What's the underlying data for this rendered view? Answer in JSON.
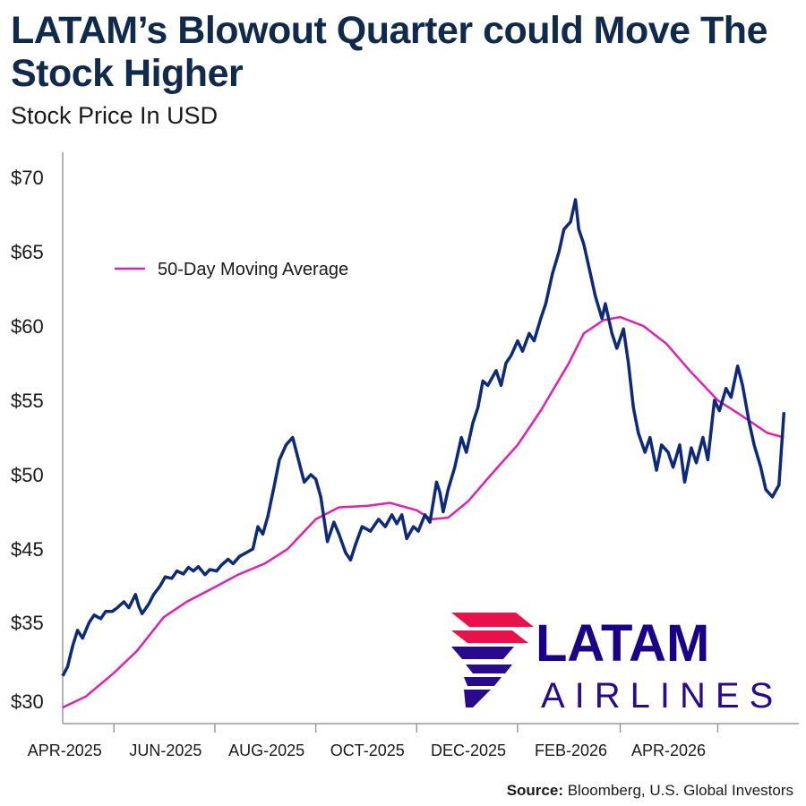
{
  "title": "LATAM’s Blowout Quarter could Move The Stock Higher",
  "subtitle": "Stock Price In USD",
  "source_label": "Source:",
  "source_text": " Bloomberg, U.S. Global Investors",
  "logo": {
    "name": "LATAM",
    "sub": "AIRLINES",
    "colors": {
      "red": "#e8114b",
      "purple": "#2a0a8c",
      "navy": "#1b0088"
    }
  },
  "colors": {
    "price": "#0d2a7a",
    "ma": "#e020b0",
    "axis": "#9a9a9a",
    "title": "#0f2a4a"
  },
  "chart_data": {
    "type": "line",
    "title": "LATAM’s Blowout Quarter could Move The Stock Higher",
    "subtitle": "Stock Price In USD",
    "ylabel": "",
    "xlabel": "",
    "ylim": [
      30,
      71
    ],
    "y_ticks": [
      {
        "value": 30,
        "label": "$30"
      },
      {
        "value": 35,
        "label": "$35"
      },
      {
        "value": 45,
        "label": "$45"
      },
      {
        "value": 50,
        "label": "$50"
      },
      {
        "value": 55,
        "label": "$55"
      },
      {
        "value": 60,
        "label": "$60"
      },
      {
        "value": 65,
        "label": "$65"
      },
      {
        "value": 70,
        "label": "$70"
      }
    ],
    "x_range": [
      "2025-03-01",
      "2026-05-20"
    ],
    "x_ticks": [
      {
        "date": "2025-04-01",
        "label": "APR-2025"
      },
      {
        "date": "2025-06-01",
        "label": "JUN-2025"
      },
      {
        "date": "2025-08-01",
        "label": "AUG-2025"
      },
      {
        "date": "2025-10-01",
        "label": "OCT-2025"
      },
      {
        "date": "2025-12-01",
        "label": "DEC-2025"
      },
      {
        "date": "2026-02-01",
        "label": "FEB-2026"
      },
      {
        "date": "2026-04-01",
        "label": "APR-2026"
      }
    ],
    "legend": {
      "position": "top-left",
      "entries": [
        "50-Day Moving Average"
      ]
    },
    "grid": false,
    "series": [
      {
        "key": "price",
        "points": [
          [
            "2025-03-01",
            31.6
          ],
          [
            "2025-03-04",
            32.2
          ],
          [
            "2025-03-07",
            33.5
          ],
          [
            "2025-03-10",
            34.5
          ],
          [
            "2025-03-13",
            34.0
          ],
          [
            "2025-03-17",
            35.0
          ],
          [
            "2025-03-20",
            36.0
          ],
          [
            "2025-03-24",
            35.5
          ],
          [
            "2025-03-27",
            36.5
          ],
          [
            "2025-03-31",
            36.5
          ],
          [
            "2025-04-03",
            37.0
          ],
          [
            "2025-04-07",
            37.8
          ],
          [
            "2025-04-10",
            37.0
          ],
          [
            "2025-04-14",
            38.8
          ],
          [
            "2025-04-16",
            37.2
          ],
          [
            "2025-04-18",
            36.2
          ],
          [
            "2025-04-22",
            37.5
          ],
          [
            "2025-04-25",
            38.8
          ],
          [
            "2025-04-29",
            40.0
          ],
          [
            "2025-05-02",
            41.2
          ],
          [
            "2025-05-06",
            41.0
          ],
          [
            "2025-05-09",
            42.0
          ],
          [
            "2025-05-13",
            41.6
          ],
          [
            "2025-05-16",
            42.5
          ],
          [
            "2025-05-19",
            42.0
          ],
          [
            "2025-05-22",
            42.6
          ],
          [
            "2025-05-26",
            41.5
          ],
          [
            "2025-05-29",
            42.2
          ],
          [
            "2025-06-02",
            42.0
          ],
          [
            "2025-06-05",
            42.8
          ],
          [
            "2025-06-09",
            43.6
          ],
          [
            "2025-06-12",
            43.0
          ],
          [
            "2025-06-16",
            44.0
          ],
          [
            "2025-06-20",
            44.5
          ],
          [
            "2025-06-24",
            45.0
          ],
          [
            "2025-06-27",
            46.5
          ],
          [
            "2025-06-30",
            46.0
          ],
          [
            "2025-07-03",
            47.2
          ],
          [
            "2025-07-07",
            49.3
          ],
          [
            "2025-07-10",
            51.0
          ],
          [
            "2025-07-14",
            52.0
          ],
          [
            "2025-07-18",
            52.5
          ],
          [
            "2025-07-22",
            50.8
          ],
          [
            "2025-07-25",
            49.5
          ],
          [
            "2025-07-29",
            50.0
          ],
          [
            "2025-08-01",
            49.7
          ],
          [
            "2025-08-04",
            48.5
          ],
          [
            "2025-08-06",
            47.0
          ],
          [
            "2025-08-08",
            45.5
          ],
          [
            "2025-08-12",
            46.8
          ],
          [
            "2025-08-15",
            46.0
          ],
          [
            "2025-08-19",
            44.5
          ],
          [
            "2025-08-22",
            43.5
          ],
          [
            "2025-08-25",
            45.3
          ],
          [
            "2025-08-29",
            46.5
          ],
          [
            "2025-09-03",
            46.2
          ],
          [
            "2025-09-08",
            47.0
          ],
          [
            "2025-09-12",
            46.5
          ],
          [
            "2025-09-16",
            47.3
          ],
          [
            "2025-09-19",
            46.7
          ],
          [
            "2025-09-22",
            47.3
          ],
          [
            "2025-09-25",
            45.7
          ],
          [
            "2025-09-29",
            46.5
          ],
          [
            "2025-10-02",
            46.2
          ],
          [
            "2025-10-06",
            47.3
          ],
          [
            "2025-10-09",
            46.8
          ],
          [
            "2025-10-13",
            49.5
          ],
          [
            "2025-10-15",
            48.8
          ],
          [
            "2025-10-17",
            47.5
          ],
          [
            "2025-10-20",
            49.0
          ],
          [
            "2025-10-24",
            50.5
          ],
          [
            "2025-10-28",
            52.5
          ],
          [
            "2025-10-31",
            51.5
          ],
          [
            "2025-11-04",
            53.5
          ],
          [
            "2025-11-07",
            54.5
          ],
          [
            "2025-11-10",
            56.3
          ],
          [
            "2025-11-13",
            56.0
          ],
          [
            "2025-11-18",
            57.0
          ],
          [
            "2025-11-21",
            56.0
          ],
          [
            "2025-11-24",
            57.5
          ],
          [
            "2025-11-27",
            58.0
          ],
          [
            "2025-12-01",
            59.0
          ],
          [
            "2025-12-04",
            58.3
          ],
          [
            "2025-12-08",
            59.5
          ],
          [
            "2025-12-11",
            59.0
          ],
          [
            "2025-12-15",
            60.5
          ],
          [
            "2025-12-18",
            61.5
          ],
          [
            "2025-12-22",
            63.5
          ],
          [
            "2025-12-26",
            65.0
          ],
          [
            "2025-12-29",
            66.5
          ],
          [
            "2026-01-02",
            67.0
          ],
          [
            "2026-01-05",
            68.5
          ],
          [
            "2026-01-07",
            66.5
          ],
          [
            "2026-01-10",
            65.5
          ],
          [
            "2026-01-14",
            63.5
          ],
          [
            "2026-01-17",
            62.0
          ],
          [
            "2026-01-21",
            60.5
          ],
          [
            "2026-01-23",
            61.5
          ],
          [
            "2026-01-27",
            59.5
          ],
          [
            "2026-01-30",
            58.5
          ],
          [
            "2026-02-03",
            59.8
          ],
          [
            "2026-02-06",
            57.5
          ],
          [
            "2026-02-09",
            54.5
          ],
          [
            "2026-02-12",
            52.8
          ],
          [
            "2026-02-16",
            51.5
          ],
          [
            "2026-02-19",
            52.5
          ],
          [
            "2026-02-23",
            50.3
          ],
          [
            "2026-02-26",
            52.0
          ],
          [
            "2026-03-02",
            51.5
          ],
          [
            "2026-03-05",
            50.5
          ],
          [
            "2026-03-09",
            52.0
          ],
          [
            "2026-03-12",
            49.5
          ],
          [
            "2026-03-16",
            51.8
          ],
          [
            "2026-03-19",
            50.8
          ],
          [
            "2026-03-23",
            52.5
          ],
          [
            "2026-03-26",
            51.0
          ],
          [
            "2026-03-30",
            55.0
          ],
          [
            "2026-04-02",
            54.3
          ],
          [
            "2026-04-06",
            55.8
          ],
          [
            "2026-04-09",
            55.2
          ],
          [
            "2026-04-13",
            57.3
          ],
          [
            "2026-04-16",
            56.0
          ],
          [
            "2026-04-20",
            53.5
          ],
          [
            "2026-04-23",
            52.0
          ],
          [
            "2026-04-27",
            50.5
          ],
          [
            "2026-04-30",
            49.0
          ],
          [
            "2026-05-04",
            48.5
          ],
          [
            "2026-05-08",
            49.3
          ],
          [
            "2026-05-11",
            54.2
          ]
        ]
      },
      {
        "name": "50-Day Moving Average",
        "key": "ma",
        "points": [
          [
            "2025-03-01",
            29.6
          ],
          [
            "2025-03-15",
            30.3
          ],
          [
            "2025-04-01",
            31.8
          ],
          [
            "2025-04-15",
            33.2
          ],
          [
            "2025-05-01",
            35.7
          ],
          [
            "2025-05-15",
            37.8
          ],
          [
            "2025-06-01",
            39.8
          ],
          [
            "2025-06-15",
            41.5
          ],
          [
            "2025-07-01",
            43.0
          ],
          [
            "2025-07-15",
            45.0
          ],
          [
            "2025-08-01",
            47.0
          ],
          [
            "2025-08-15",
            47.8
          ],
          [
            "2025-09-01",
            47.9
          ],
          [
            "2025-09-15",
            48.1
          ],
          [
            "2025-10-01",
            47.6
          ],
          [
            "2025-10-10",
            47.0
          ],
          [
            "2025-10-20",
            47.1
          ],
          [
            "2025-11-01",
            48.2
          ],
          [
            "2025-11-15",
            50.0
          ],
          [
            "2025-12-01",
            52.0
          ],
          [
            "2025-12-15",
            54.3
          ],
          [
            "2026-01-01",
            57.5
          ],
          [
            "2026-01-10",
            59.5
          ],
          [
            "2026-01-22",
            60.4
          ],
          [
            "2026-02-01",
            60.6
          ],
          [
            "2026-02-15",
            60.0
          ],
          [
            "2026-03-01",
            58.8
          ],
          [
            "2026-03-15",
            57.0
          ],
          [
            "2026-04-01",
            55.0
          ],
          [
            "2026-04-15",
            54.0
          ],
          [
            "2026-05-01",
            52.8
          ],
          [
            "2026-05-11",
            52.5
          ]
        ]
      }
    ]
  }
}
